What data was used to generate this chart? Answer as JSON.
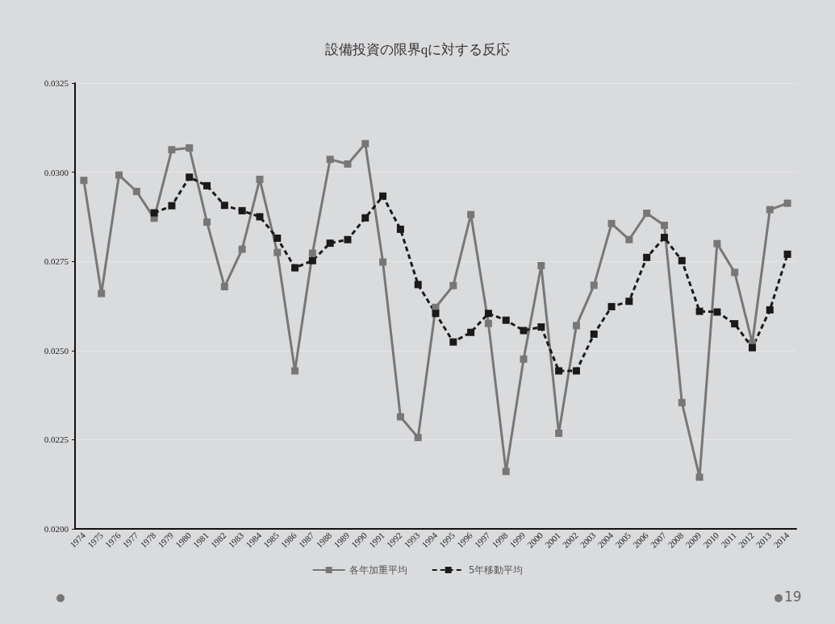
{
  "chart_data": {
    "type": "line",
    "title": "設備投資の限界qに対する反応",
    "categories": [
      "1974",
      "1975",
      "1976",
      "1977",
      "1978",
      "1979",
      "1980",
      "1981",
      "1982",
      "1983",
      "1984",
      "1985",
      "1986",
      "1987",
      "1988",
      "1989",
      "1990",
      "1991",
      "1992",
      "1993",
      "1994",
      "1995",
      "1996",
      "1997",
      "1998",
      "1999",
      "2000",
      "2001",
      "2002",
      "2003",
      "2004",
      "2005",
      "2006",
      "2007",
      "2008",
      "2009",
      "2010",
      "2011",
      "2012",
      "2013",
      "2014"
    ],
    "series": [
      {
        "name": "各年加重平均",
        "color": "#777777",
        "line_style": "solid",
        "values": [
          0.02977,
          0.0266,
          0.02992,
          0.02946,
          0.02871,
          0.03063,
          0.03068,
          0.0286,
          0.02679,
          0.02784,
          0.0298,
          0.02775,
          0.02443,
          0.02773,
          0.03036,
          0.03023,
          0.0308,
          0.02748,
          0.02314,
          0.02256,
          0.02621,
          0.02682,
          0.02881,
          0.02576,
          0.02161,
          0.02476,
          0.02738,
          0.02268,
          0.0257,
          0.02683,
          0.02856,
          0.02811,
          0.02885,
          0.02851,
          0.02354,
          0.02145,
          0.028,
          0.02719,
          0.02521,
          0.02895,
          0.02913
        ]
      },
      {
        "name": "5年移動平均",
        "color": "#1a1a1a",
        "line_style": "dashed",
        "values": [
          null,
          null,
          null,
          null,
          0.02886,
          0.02906,
          0.02986,
          0.02962,
          0.02907,
          0.02892,
          0.02875,
          0.02815,
          0.02732,
          0.02752,
          0.02801,
          0.02811,
          0.02872,
          0.02933,
          0.0284,
          0.02685,
          0.02604,
          0.02524,
          0.02551,
          0.02604,
          0.02585,
          0.02556,
          0.02566,
          0.02443,
          0.02443,
          0.02546,
          0.02623,
          0.02638,
          0.02761,
          0.02817,
          0.02752,
          0.0261,
          0.02608,
          0.02575,
          0.02508,
          0.02614,
          0.0277
        ]
      }
    ],
    "ylim": [
      0.02,
      0.0325
    ],
    "yticks": [
      {
        "value": 0.02,
        "label": "0.0200"
      },
      {
        "value": 0.0225,
        "label": "0.0225"
      },
      {
        "value": 0.025,
        "label": "0.0250"
      },
      {
        "value": 0.0275,
        "label": "0.0275"
      },
      {
        "value": 0.03,
        "label": "0.0300"
      },
      {
        "value": 0.0325,
        "label": "0.0325"
      }
    ],
    "grid": "y",
    "legend": "bottom",
    "marker": "square",
    "annotations": [
      "19"
    ]
  }
}
